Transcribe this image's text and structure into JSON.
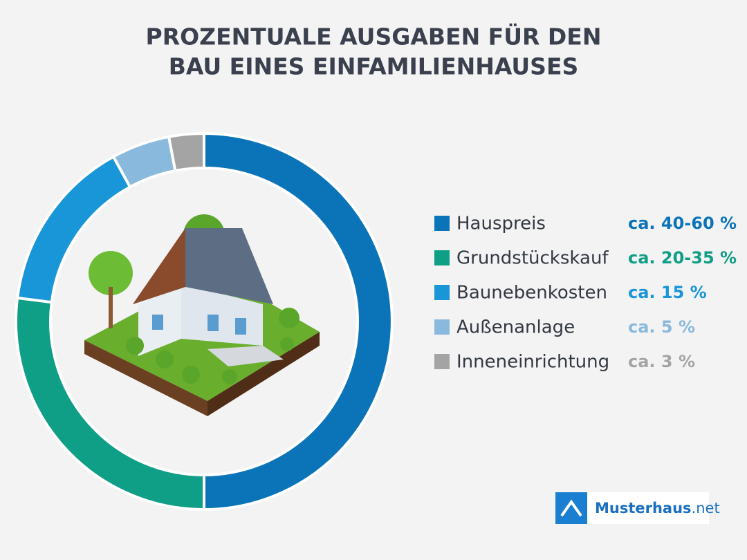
{
  "chart_data": {
    "type": "donut",
    "title": [
      "PROZENTUALE AUSGABEN FÜR DEN",
      "BAU EINES EINFAMILIENHAUSES"
    ],
    "categories": [
      "Hauspreis",
      "Grundstückskauf",
      "Baunebenkosten",
      "Außenanlage",
      "Inneneinrichtung"
    ],
    "values": [
      50,
      27,
      15,
      5,
      3
    ],
    "value_labels": [
      "ca. 40-60 %",
      "ca. 20-35 %",
      "ca. 15 %",
      "ca. 5 %",
      "ca. 3 %"
    ],
    "colors": [
      "#0b74b8",
      "#0f9e86",
      "#1896d7",
      "#89b9dc",
      "#a4a4a4"
    ]
  },
  "logo": {
    "name": "Musterhaus",
    "suffix": ".net"
  }
}
